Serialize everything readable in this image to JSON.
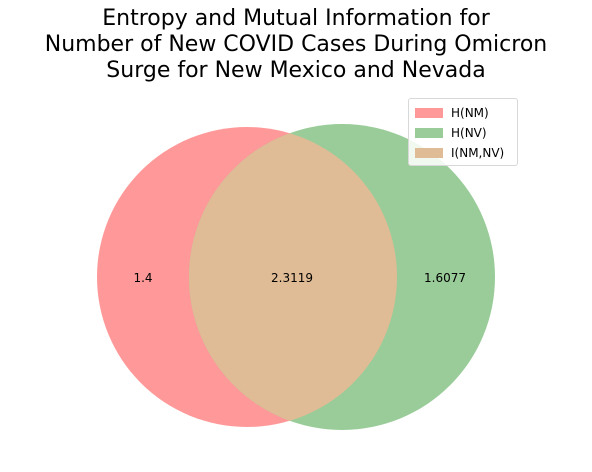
{
  "title": {
    "lines": [
      "Entropy and Mutual Information for",
      "Number of New COVID Cases During Omicron",
      "Surge for New Mexico and Nevada"
    ]
  },
  "legend": {
    "items": [
      {
        "label": "H(NM)",
        "color": "#ff9999"
      },
      {
        "label": "H(NV)",
        "color": "#99cc99"
      },
      {
        "label": "I(NM,NV)",
        "color": "#dfbc95"
      }
    ]
  },
  "chart_data": {
    "type": "venn",
    "sets": [
      {
        "name": "H(NM)",
        "only_value": "1.4",
        "color": "#ff9999"
      },
      {
        "name": "H(NV)",
        "only_value": "1.6077",
        "color": "#99cc99"
      }
    ],
    "intersection": {
      "name": "I(NM,NV)",
      "value": "2.3119",
      "color": "#dfbc95"
    },
    "legend_position": "top-right"
  }
}
